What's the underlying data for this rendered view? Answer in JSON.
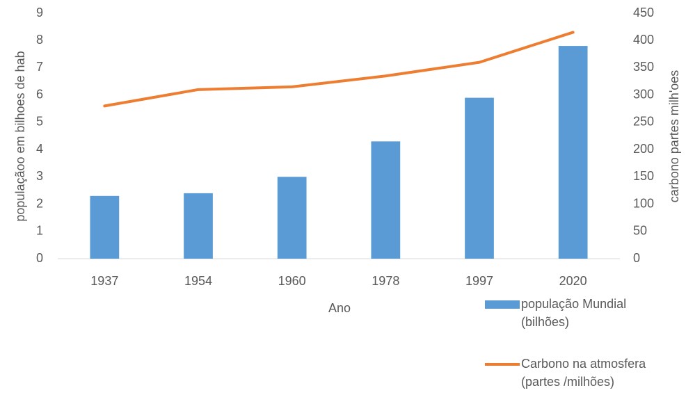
{
  "chart_data": {
    "type": "bar",
    "xlabel": "Ano",
    "ylabel": "populaçãoo em bilhoes de hab",
    "y2label": "carbono partes  milh'oes",
    "categories": [
      "1937",
      "1954",
      "1960",
      "1978",
      "1997",
      "2020"
    ],
    "series": [
      {
        "name": "população Mundial (bilhões)",
        "type": "bar",
        "color": "#5b9bd5",
        "values": [
          2.3,
          2.4,
          3.0,
          4.3,
          5.9,
          7.8
        ]
      },
      {
        "name": "Carbono na atmosfera (partes /milhões)",
        "type": "line",
        "axis": "y2",
        "color": "#ed7d31",
        "values": [
          280,
          310,
          315,
          335,
          360,
          415
        ]
      }
    ],
    "ylim": [
      0,
      9
    ],
    "yticks": [
      0,
      1,
      2,
      3,
      4,
      5,
      6,
      7,
      8,
      9
    ],
    "y2lim": [
      0,
      450
    ],
    "y2ticks": [
      0,
      50,
      100,
      150,
      200,
      250,
      300,
      350,
      400,
      450
    ],
    "legend": "bottom-right"
  }
}
